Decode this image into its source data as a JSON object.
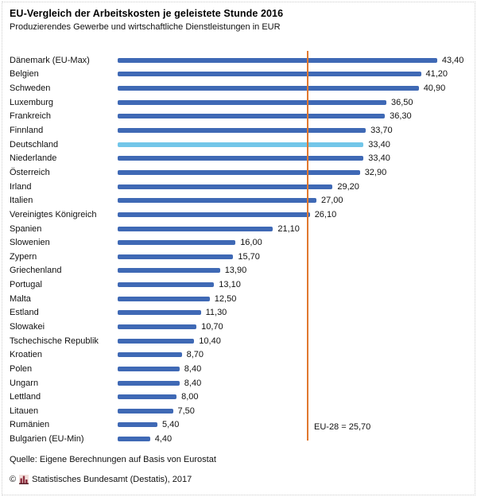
{
  "header": {
    "title": "EU-Vergleich der Arbeitskosten je geleistete Stunde 2016",
    "subtitle": "Produzierendes Gewerbe und wirtschaftliche Dienstleistungen in EUR"
  },
  "chart_data": {
    "type": "bar",
    "orientation": "horizontal",
    "unit": "EUR",
    "categories": [
      "Dänemark (EU-Max)",
      "Belgien",
      "Schweden",
      "Luxemburg",
      "Frankreich",
      "Finnland",
      "Deutschland",
      "Niederlande",
      "Österreich",
      "Irland",
      "Italien",
      "Vereinigtes Königreich",
      "Spanien",
      "Slowenien",
      "Zypern",
      "Griechenland",
      "Portugal",
      "Malta",
      "Estland",
      "Slowakei",
      "Tschechische Republik",
      "Kroatien",
      "Polen",
      "Ungarn",
      "Lettland",
      "Litauen",
      "Rumänien",
      "Bulgarien (EU-Min)"
    ],
    "values": [
      43.4,
      41.2,
      40.9,
      36.5,
      36.3,
      33.7,
      33.4,
      33.4,
      32.9,
      29.2,
      27.0,
      26.1,
      21.1,
      16.0,
      15.7,
      13.9,
      13.1,
      12.5,
      11.3,
      10.7,
      10.4,
      8.7,
      8.4,
      8.4,
      8.0,
      7.5,
      5.4,
      4.4
    ],
    "value_labels": [
      "43,40",
      "41,20",
      "40,90",
      "36,50",
      "36,30",
      "33,70",
      "33,40",
      "33,40",
      "32,90",
      "29,20",
      "27,00",
      "26,10",
      "21,10",
      "16,00",
      "15,70",
      "13,90",
      "13,10",
      "12,50",
      "11,30",
      "10,70",
      "10,40",
      "8,70",
      "8,40",
      "8,40",
      "8,00",
      "7,50",
      "5,40",
      "4,40"
    ],
    "highlighted_category": "Deutschland",
    "reference_line": {
      "value": 25.7,
      "label": "EU-28 = 25,70"
    },
    "colors": {
      "bar": "#3F69B5",
      "highlight": "#72C6E9",
      "reference": "#E0782F"
    },
    "xlim": [
      0,
      48
    ],
    "grid": false,
    "legend": false,
    "title": "EU-Vergleich der Arbeitskosten je geleistete Stunde 2016",
    "xlabel": "EUR",
    "ylabel": ""
  },
  "footer": {
    "source": "Quelle: Eigene Berechnungen auf Basis von Eurostat",
    "copyright_symbol": "©",
    "copyright_text": "Statistisches Bundesamt (Destatis), 2017",
    "logo_icon": "destatis-bar-chart-logo"
  }
}
